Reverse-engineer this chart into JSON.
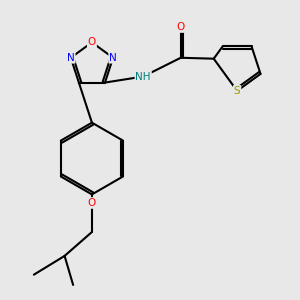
{
  "background_color": "#e8e8e8",
  "bond_color": "#000000",
  "lw": 1.5,
  "colors": {
    "S": "#999900",
    "O": "#ff0000",
    "N": "#0000ff",
    "NH": "#008080"
  },
  "fontsize": 7.5
}
